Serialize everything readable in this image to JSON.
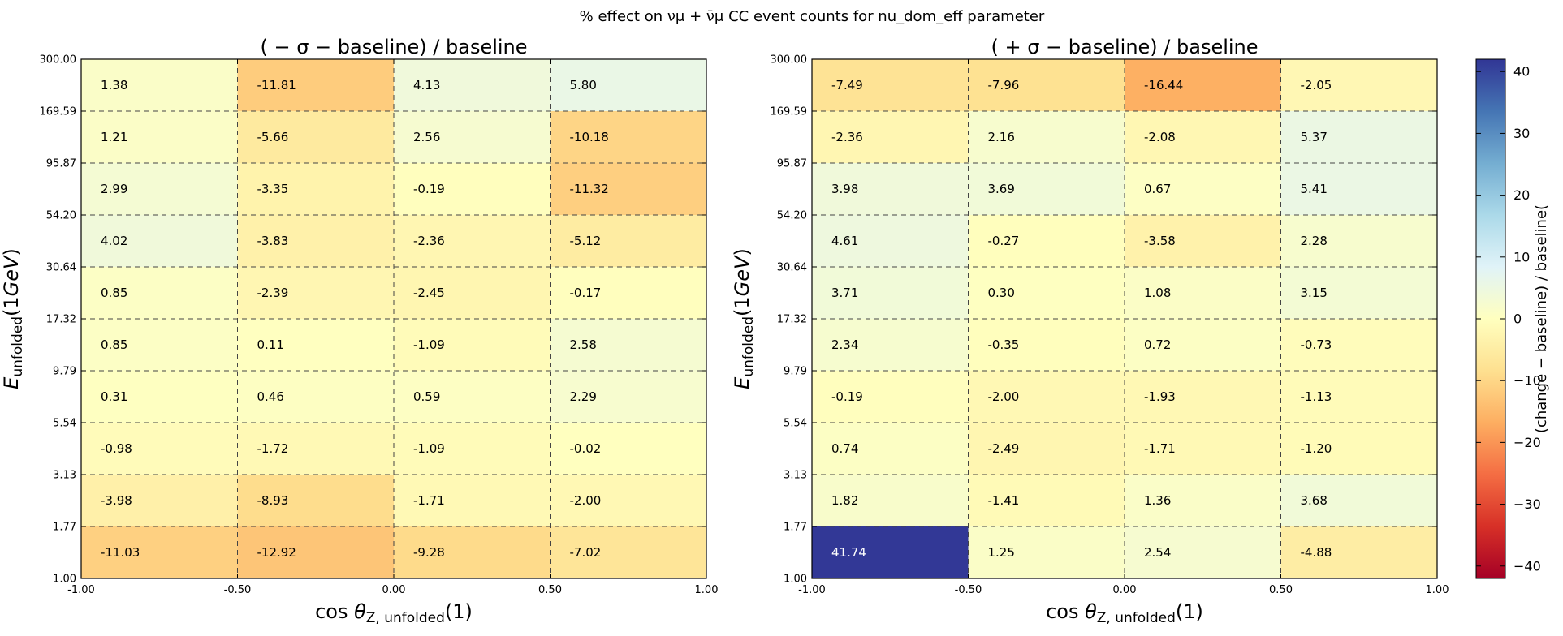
{
  "chart_data": {
    "type": "heatmap",
    "suptitle": "% effect on νμ + ν̄μ CC event counts for nu_dom_eff parameter",
    "x_edges": [
      -1.0,
      -0.5,
      0.0,
      0.5,
      1.0
    ],
    "x_tick_labels": [
      "-1.00",
      "-0.50",
      "0.00",
      "0.50",
      "1.00"
    ],
    "y_edges": [
      1.0,
      1.77,
      3.13,
      5.54,
      9.79,
      17.32,
      30.64,
      54.2,
      95.87,
      169.59,
      300.0
    ],
    "y_tick_labels": [
      "1.00",
      "1.77",
      "3.13",
      "5.54",
      "9.79",
      "17.32",
      "30.64",
      "54.20",
      "95.87",
      "169.59",
      "300.00"
    ],
    "y_scale": "log",
    "xlabel": "cos θZ,unfolded (1)",
    "ylabel": "Eunfolded (1GeV)",
    "colorbar": {
      "label": "(change − baseline) / baseline(",
      "range": [
        -42,
        42
      ],
      "ticks": [
        40,
        30,
        20,
        10,
        0,
        -10,
        -20,
        -30,
        -40
      ],
      "tick_labels": [
        "40",
        "30",
        "20",
        "10",
        "0",
        "−10",
        "−20",
        "−30",
        "−40"
      ],
      "colormap": "RdYlBu"
    },
    "grid": "dashed at bin edges",
    "panels": [
      {
        "title": "( − σ − baseline) / baseline",
        "values": [
          [
            -11.03,
            -12.92,
            -9.28,
            -7.02
          ],
          [
            -3.98,
            -8.93,
            -1.71,
            -2.0
          ],
          [
            -0.98,
            -1.72,
            -1.09,
            -0.02
          ],
          [
            0.31,
            0.46,
            0.59,
            2.29
          ],
          [
            0.85,
            0.11,
            -1.09,
            2.58
          ],
          [
            0.85,
            -2.39,
            -2.45,
            -0.17
          ],
          [
            4.02,
            -3.83,
            -2.36,
            -5.12
          ],
          [
            2.99,
            -3.35,
            -0.19,
            -11.32
          ],
          [
            1.21,
            -5.66,
            2.56,
            -10.18
          ],
          [
            1.38,
            -11.81,
            4.13,
            5.8
          ]
        ]
      },
      {
        "title": "( + σ − baseline) / baseline",
        "values": [
          [
            41.74,
            1.25,
            2.54,
            -4.88
          ],
          [
            1.82,
            -1.41,
            1.36,
            3.68
          ],
          [
            0.74,
            -2.49,
            -1.71,
            -1.2
          ],
          [
            -0.19,
            -2.0,
            -1.93,
            -1.13
          ],
          [
            2.34,
            -0.35,
            0.72,
            -0.73
          ],
          [
            3.71,
            0.3,
            1.08,
            3.15
          ],
          [
            4.61,
            -0.27,
            -3.58,
            2.28
          ],
          [
            3.98,
            3.69,
            0.67,
            5.41
          ],
          [
            -2.36,
            2.16,
            -2.08,
            5.37
          ],
          [
            -7.49,
            -7.96,
            -16.44,
            -2.05
          ]
        ]
      }
    ]
  }
}
